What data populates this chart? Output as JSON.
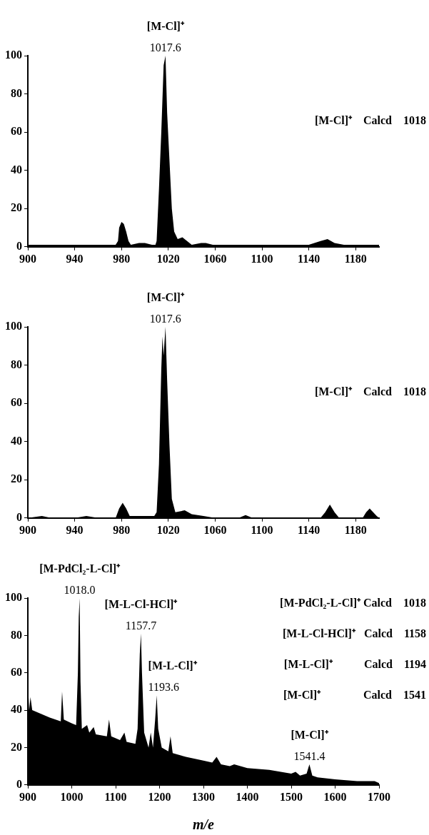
{
  "chart_data": [
    {
      "type": "area",
      "xlim": [
        900,
        1200
      ],
      "xticks": [
        900,
        940,
        980,
        1020,
        1060,
        1100,
        1140,
        1180
      ],
      "ylim": [
        0,
        100
      ],
      "yticks": [
        0,
        20,
        40,
        60,
        80,
        100
      ],
      "grid": false,
      "legend": false,
      "series": [
        {
          "color": "#000000",
          "x": [
            900,
            920,
            940,
            960,
            975,
            977,
            978,
            980,
            982,
            984,
            986,
            988,
            995,
            1000,
            1006,
            1009,
            1010,
            1012,
            1014,
            1016,
            1017.6,
            1019,
            1021,
            1023,
            1025,
            1028,
            1032,
            1036,
            1040,
            1048,
            1052,
            1058,
            1070,
            1085,
            1100,
            1120,
            1140,
            1150,
            1156,
            1162,
            1170,
            1190,
            1200
          ],
          "values": [
            1,
            1,
            1,
            1,
            1,
            3,
            10,
            13,
            12,
            8,
            3,
            1,
            2,
            2,
            1,
            1,
            3,
            30,
            60,
            95,
            100,
            70,
            45,
            20,
            8,
            4,
            5,
            3,
            1,
            2,
            2,
            1,
            1,
            1,
            1,
            1,
            1,
            3,
            4,
            2,
            1,
            1,
            1
          ]
        }
      ],
      "annotations": [
        {
          "text": "[M-Cl]⁺",
          "x": 1017.6,
          "y": 100
        },
        {
          "text": "1017.6",
          "x": 1017.6,
          "y": 100
        },
        "[M-Cl]⁺    Calcd    1018"
      ]
    },
    {
      "type": "area",
      "xlim": [
        900,
        1200
      ],
      "xticks": [
        900,
        940,
        980,
        1020,
        1060,
        1100,
        1140,
        1180
      ],
      "ylim": [
        0,
        100
      ],
      "yticks": [
        0,
        20,
        40,
        60,
        80,
        100
      ],
      "grid": false,
      "legend": false,
      "series": [
        {
          "color": "#000000",
          "x": [
            900,
            912,
            920,
            940,
            950,
            960,
            975,
            978,
            981,
            984,
            987,
            1000,
            1008,
            1010,
            1012,
            1014,
            1015,
            1016,
            1017.6,
            1019,
            1021,
            1023,
            1026,
            1034,
            1040,
            1050,
            1060,
            1080,
            1086,
            1092,
            1150,
            1154,
            1158,
            1162,
            1166,
            1186,
            1189,
            1192,
            1195,
            1198,
            1200
          ],
          "values": [
            0,
            1,
            0,
            0,
            1,
            0,
            0,
            5,
            8,
            5,
            1,
            1,
            1,
            3,
            28,
            78,
            95,
            85,
            100,
            72,
            38,
            10,
            3,
            4,
            2,
            1,
            0,
            0,
            1.5,
            0,
            0,
            3,
            7,
            3,
            0,
            0,
            3,
            5,
            3,
            1,
            0
          ]
        }
      ],
      "annotations": [
        {
          "text": "[M-Cl]⁺",
          "x": 1017.6,
          "y": 100
        },
        {
          "text": "1017.6",
          "x": 1017.6,
          "y": 100
        },
        "[M-Cl]⁺    Calcd    1018"
      ]
    },
    {
      "type": "area",
      "xlim": [
        900,
        1700
      ],
      "xticks": [
        900,
        1000,
        1100,
        1200,
        1300,
        1400,
        1500,
        1600,
        1700
      ],
      "ylim": [
        0,
        100
      ],
      "yticks": [
        0,
        20,
        40,
        60,
        80,
        100
      ],
      "grid": false,
      "legend": false,
      "xlabel": "m/e",
      "series": [
        {
          "color": "#000000",
          "x": [
            900,
            903,
            906,
            910,
            930,
            950,
            975,
            978,
            982,
            1000,
            1010,
            1014,
            1016,
            1018,
            1020,
            1023,
            1035,
            1040,
            1050,
            1055,
            1080,
            1085,
            1090,
            1110,
            1120,
            1125,
            1145,
            1150,
            1155,
            1157.7,
            1160,
            1165,
            1175,
            1180,
            1185,
            1190,
            1193.6,
            1197,
            1205,
            1220,
            1225,
            1230,
            1260,
            1300,
            1320,
            1330,
            1340,
            1360,
            1370,
            1400,
            1450,
            1500,
            1510,
            1520,
            1535,
            1541.4,
            1548,
            1560,
            1600,
            1650,
            1690,
            1700
          ],
          "values": [
            55,
            40,
            47,
            40,
            38,
            36,
            34,
            50,
            35,
            33,
            32,
            60,
            90,
            100,
            55,
            30,
            32,
            28,
            31,
            27,
            26,
            35,
            26,
            24,
            28,
            23,
            22,
            30,
            70,
            81,
            60,
            28,
            20,
            28,
            20,
            35,
            48,
            30,
            20,
            18,
            26,
            17,
            15,
            13,
            12,
            15,
            11,
            10,
            11,
            9,
            8,
            6,
            7,
            5,
            6,
            11,
            5,
            4,
            3,
            2,
            2,
            1
          ]
        }
      ],
      "annotations": [
        {
          "text": "[M-PdCl₂-L-Cl]⁺",
          "x": 1018.0,
          "y": 100
        },
        {
          "text": "1018.0",
          "x": 1018.0,
          "y": 100
        },
        {
          "text": "[M-L-Cl-HCl]⁺",
          "x": 1157.7,
          "y": 81
        },
        {
          "text": "1157.7",
          "x": 1157.7,
          "y": 81
        },
        {
          "text": "[M-L-Cl]⁺",
          "x": 1193.6,
          "y": 48
        },
        {
          "text": "1193.6",
          "x": 1193.6,
          "y": 48
        },
        {
          "text": "[M-Cl]⁺",
          "x": 1541.4,
          "y": 11
        },
        {
          "text": "1541.4",
          "x": 1541.4,
          "y": 11
        },
        "[M-PdCl₂-L-Cl]⁺ Calcd    1018",
        "[M-L-Cl-HCl]⁺   Calcd    1158",
        "[M-L-Cl]⁺           Calcd    1194",
        "[M-Cl]⁺               Calcd    1541"
      ]
    }
  ]
}
